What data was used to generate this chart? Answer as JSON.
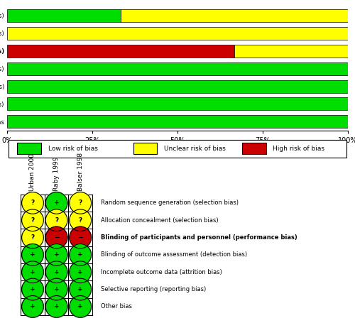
{
  "bias_labels": [
    "Random sequence generation (selection bias)",
    "Allocation concealment (selection bias)",
    "Blinding of participants and personnel (performance bias)",
    "Blinding of outcome assessment (detection bias)",
    "Incomplete outcome data (attrition bias)",
    "Selective reporting (reporting bias)",
    "Other bias"
  ],
  "bar_data": [
    {
      "low": 33.33,
      "unclear": 66.67,
      "high": 0
    },
    {
      "low": 0,
      "unclear": 100,
      "high": 0
    },
    {
      "low": 0,
      "unclear": 33.33,
      "high": 66.67
    },
    {
      "low": 100,
      "unclear": 0,
      "high": 0
    },
    {
      "low": 100,
      "unclear": 0,
      "high": 0
    },
    {
      "low": 100,
      "unclear": 0,
      "high": 0
    },
    {
      "low": 100,
      "unclear": 0,
      "high": 0
    }
  ],
  "color_low": "#00dd00",
  "color_unclear": "#ffff00",
  "color_high": "#cc0000",
  "studies": [
    "Urban 2000",
    "Raby 1999",
    "Balser 1998"
  ],
  "table_data": [
    [
      "unclear",
      "low",
      "unclear"
    ],
    [
      "unclear",
      "unclear",
      "unclear"
    ],
    [
      "unclear",
      "high",
      "high"
    ],
    [
      "low",
      "low",
      "low"
    ],
    [
      "low",
      "low",
      "low"
    ],
    [
      "low",
      "low",
      "low"
    ],
    [
      "low",
      "low",
      "low"
    ]
  ],
  "legend_labels": [
    "Low risk of bias",
    "Unclear risk of bias",
    "High risk of bias"
  ],
  "fig_width": 5.0,
  "fig_height": 4.62,
  "dpi": 100
}
